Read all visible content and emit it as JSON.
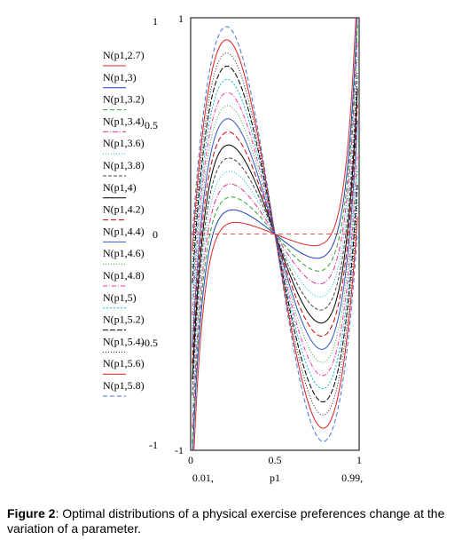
{
  "chart_data": {
    "type": "line",
    "x": [
      0.01,
      0.05,
      0.1,
      0.15,
      0.2,
      0.25,
      0.3,
      0.35,
      0.4,
      0.45,
      0.5,
      0.55,
      0.6,
      0.65,
      0.7,
      0.75,
      0.8,
      0.85,
      0.9,
      0.95,
      0.99
    ],
    "xlabel": "p1",
    "ylabel": "",
    "xlim": [
      0,
      1
    ],
    "ylim": [
      -1,
      1
    ],
    "left_axis_ticks": [
      "1",
      "0.5",
      "0",
      "-0.5",
      "-1"
    ],
    "plot_y_ticks": [
      "1",
      "-1"
    ],
    "x_ticks": [
      "0",
      "0.5",
      "1"
    ],
    "x_range_labels": [
      "0.01,",
      "0.99,"
    ],
    "grid": false,
    "legend_position": "left",
    "series": [
      {
        "name": "N(p1,2.7)",
        "color": "#d62728",
        "dash": "",
        "peak": 0.06,
        "steep": 0.35
      },
      {
        "name": "N(p1,3)",
        "color": "#1f3fbf",
        "dash": "",
        "peak": 0.12,
        "steep": 0.31
      },
      {
        "name": "N(p1,3.2)",
        "color": "#2ca02c",
        "dash": "5 3",
        "peak": 0.18,
        "steep": 0.29
      },
      {
        "name": "N(p1,3.4)",
        "color": "#e0338c",
        "dash": "6 2 1 2",
        "peak": 0.24,
        "steep": 0.27
      },
      {
        "name": "N(p1,3.6)",
        "color": "#17becf",
        "dash": "1 2",
        "peak": 0.3,
        "steep": 0.25
      },
      {
        "name": "N(p1,3.8)",
        "color": "#444444",
        "dash": "4 2",
        "peak": 0.36,
        "steep": 0.23
      },
      {
        "name": "N(p1,4)",
        "color": "#000000",
        "dash": "",
        "peak": 0.42,
        "steep": 0.21
      },
      {
        "name": "N(p1,4.2)",
        "color": "#cc0000",
        "dash": "6 3",
        "peak": 0.48,
        "steep": 0.19
      },
      {
        "name": "N(p1,4.4)",
        "color": "#3355cc",
        "dash": "",
        "peak": 0.54,
        "steep": 0.17
      },
      {
        "name": "N(p1,4.6)",
        "color": "#33aa33",
        "dash": "1 2",
        "peak": 0.6,
        "steep": 0.15
      },
      {
        "name": "N(p1,4.8)",
        "color": "#ff3399",
        "dash": "5 2 1 2",
        "peak": 0.66,
        "steep": 0.13
      },
      {
        "name": "N(p1,5)",
        "color": "#00bcd4",
        "dash": "2 2",
        "peak": 0.72,
        "steep": 0.11
      },
      {
        "name": "N(p1,5.2)",
        "color": "#000000",
        "dash": "6 2",
        "peak": 0.78,
        "steep": 0.09
      },
      {
        "name": "N(p1,5.4)",
        "color": "#222222",
        "dash": "1 2",
        "peak": 0.84,
        "steep": 0.07
      },
      {
        "name": "N(p1,5.6)",
        "color": "#e31a1c",
        "dash": "",
        "peak": 0.9,
        "steep": 0.05
      },
      {
        "name": "N(p1,5.8)",
        "color": "#4a6fd8",
        "dash": "5 3",
        "peak": 0.96,
        "steep": 0.03
      }
    ]
  },
  "caption": {
    "label": "Figure 2",
    "text": ": Optimal distributions of a physical exercise preferences change at the variation of a parameter."
  }
}
